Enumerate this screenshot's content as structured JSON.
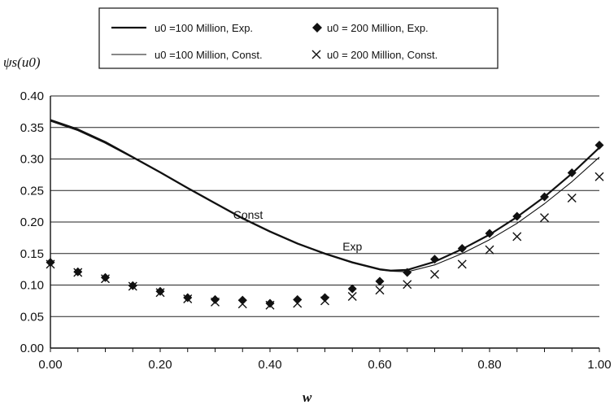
{
  "chart_data": {
    "type": "line",
    "xlabel": "w",
    "ylabel": "ψs(u0)",
    "xlim": [
      0,
      1
    ],
    "ylim": [
      0,
      0.4
    ],
    "xticks": [
      "0.00",
      "0.20",
      "0.40",
      "0.60",
      "0.80",
      "1.00"
    ],
    "yticks": [
      "0.00",
      "0.05",
      "0.10",
      "0.15",
      "0.20",
      "0.25",
      "0.30",
      "0.35",
      "0.40"
    ],
    "grid": "horizontal",
    "legend_position": "top",
    "annotations": [
      {
        "text": "Const",
        "x": 0.36,
        "y": 0.205
      },
      {
        "text": "Exp",
        "x": 0.55,
        "y": 0.155
      }
    ],
    "series": [
      {
        "name": "u0 =100 Million, Exp.",
        "style": "line",
        "x": [
          0.0,
          0.05,
          0.1,
          0.15,
          0.2,
          0.25,
          0.3,
          0.35,
          0.4,
          0.45,
          0.5,
          0.55,
          0.6,
          0.62,
          0.65,
          0.7,
          0.75,
          0.8,
          0.85,
          0.9,
          0.95,
          1.0
        ],
        "y": [
          0.362,
          0.347,
          0.327,
          0.303,
          0.279,
          0.254,
          0.23,
          0.206,
          0.185,
          0.166,
          0.15,
          0.136,
          0.125,
          0.123,
          0.124,
          0.137,
          0.157,
          0.18,
          0.208,
          0.24,
          0.277,
          0.318
        ]
      },
      {
        "name": "u0 =100 Million, Const.",
        "style": "line",
        "x": [
          0.0,
          0.05,
          0.1,
          0.15,
          0.2,
          0.25,
          0.3,
          0.35,
          0.4,
          0.45,
          0.5,
          0.55,
          0.6,
          0.62,
          0.65,
          0.7,
          0.75,
          0.8,
          0.85,
          0.9,
          0.95,
          1.0
        ],
        "y": [
          0.36,
          0.345,
          0.325,
          0.302,
          0.278,
          0.253,
          0.229,
          0.205,
          0.184,
          0.165,
          0.149,
          0.135,
          0.124,
          0.122,
          0.121,
          0.132,
          0.15,
          0.172,
          0.198,
          0.229,
          0.264,
          0.303
        ]
      },
      {
        "name": "u0 = 200 Million, Exp.",
        "style": "diamond",
        "x": [
          0.0,
          0.05,
          0.1,
          0.15,
          0.2,
          0.25,
          0.3,
          0.35,
          0.4,
          0.45,
          0.5,
          0.55,
          0.6,
          0.65,
          0.7,
          0.75,
          0.8,
          0.85,
          0.9,
          0.95,
          1.0
        ],
        "y": [
          0.136,
          0.121,
          0.112,
          0.099,
          0.09,
          0.08,
          0.077,
          0.076,
          0.071,
          0.077,
          0.08,
          0.094,
          0.106,
          0.12,
          0.141,
          0.158,
          0.182,
          0.209,
          0.24,
          0.278,
          0.322
        ]
      },
      {
        "name": "u0 = 200 Million, Const.",
        "style": "x",
        "x": [
          0.0,
          0.05,
          0.1,
          0.15,
          0.2,
          0.25,
          0.3,
          0.35,
          0.4,
          0.45,
          0.5,
          0.55,
          0.6,
          0.65,
          0.7,
          0.75,
          0.8,
          0.85,
          0.9,
          0.95,
          1.0
        ],
        "y": [
          0.133,
          0.12,
          0.11,
          0.098,
          0.088,
          0.078,
          0.073,
          0.07,
          0.068,
          0.071,
          0.075,
          0.082,
          0.092,
          0.101,
          0.117,
          0.133,
          0.156,
          0.177,
          0.207,
          0.238,
          0.272
        ]
      }
    ]
  }
}
